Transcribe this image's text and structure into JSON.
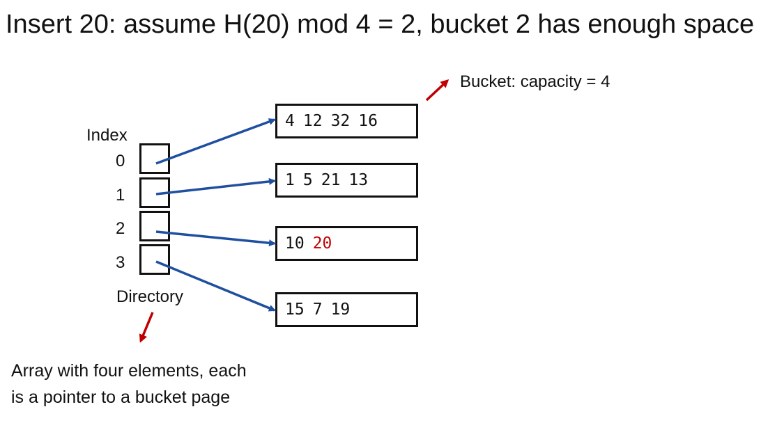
{
  "title": "Insert 20: assume H(20) mod 4 = 2, bucket 2 has enough space",
  "bucket_note": "Bucket: capacity = 4",
  "index_label": "Index",
  "directory_label": "Directory",
  "directory_note": [
    "Array with four elements, each",
    "is a pointer to a bucket page"
  ],
  "indices": [
    "0",
    "1",
    "2",
    "3"
  ],
  "buckets": [
    {
      "entries": [
        {
          "v": "4"
        },
        {
          "v": "12"
        },
        {
          "v": "32"
        },
        {
          "v": "16"
        }
      ]
    },
    {
      "entries": [
        {
          "v": "1"
        },
        {
          "v": "5"
        },
        {
          "v": "21"
        },
        {
          "v": "13"
        }
      ]
    },
    {
      "entries": [
        {
          "v": "10"
        },
        {
          "v": "20",
          "new": true
        }
      ]
    },
    {
      "entries": [
        {
          "v": "15"
        },
        {
          "v": "7"
        },
        {
          "v": "19"
        }
      ]
    }
  ],
  "colors": {
    "arrow": "#1f4fa0",
    "annotation_arrow": "#c00000",
    "new_entry": "#c00000"
  }
}
